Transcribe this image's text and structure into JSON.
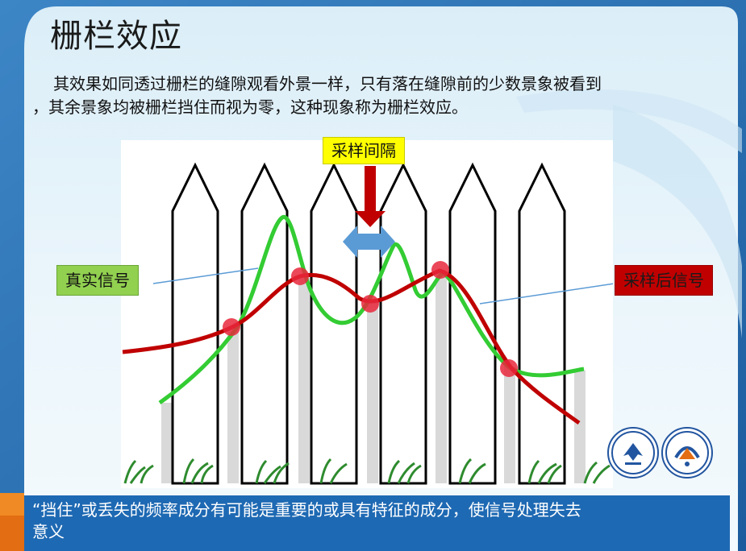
{
  "slide": {
    "title": "栅栏效应",
    "paragraph_line1": "其效果如同透过栅栏的缝隙观看外景一样，只有落在缝隙前的少数景象被看到",
    "paragraph_line2": "，其余景象均被栅栏挡住而视为零，这种现象称为栅栏效应。",
    "footer_line1": "“挡住”或丢失的频率成分有可能是重要的或具有特征的成分，使信号处理失去",
    "footer_line2": "意义"
  },
  "diagram": {
    "label_sampling_interval": "采样间隔",
    "label_true_signal": "真实信号",
    "label_sampled_signal": "采样后信号"
  },
  "colors": {
    "true_signal": "#33cc33",
    "sampled_signal": "#cc0000",
    "sample_point": "#e8283c",
    "arrow_down": "#c00000",
    "arrow_double": "#5b9bd5",
    "footer": "#1e69b3"
  }
}
